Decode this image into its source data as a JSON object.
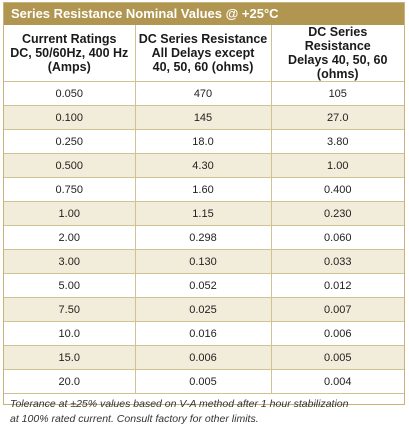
{
  "title": "Series Resistance Nominal Values @ +25°C",
  "colors": {
    "header_bg": "#b09650",
    "row_alt_bg": "#f2ecda",
    "rule": "#d2c291"
  },
  "headers": [
    [
      "Current Ratings",
      "DC, 50/60Hz, 400 Hz",
      "(Amps)"
    ],
    [
      "DC Series Resistance",
      "All Delays except",
      "40, 50, 60 (ohms)"
    ],
    [
      "DC Series Resistance",
      "Delays 40, 50, 60",
      "(ohms)"
    ]
  ],
  "rows": [
    [
      "0.050",
      "470",
      "105"
    ],
    [
      "0.100",
      "145",
      "27.0"
    ],
    [
      "0.250",
      "18.0",
      "3.80"
    ],
    [
      "0.500",
      "4.30",
      "1.00"
    ],
    [
      "0.750",
      "1.60",
      "0.400"
    ],
    [
      "1.00",
      "1.15",
      "0.230"
    ],
    [
      "2.00",
      "0.298",
      "0.060"
    ],
    [
      "3.00",
      "0.130",
      "0.033"
    ],
    [
      "5.00",
      "0.052",
      "0.012"
    ],
    [
      "7.50",
      "0.025",
      "0.007"
    ],
    [
      "10.0",
      "0.016",
      "0.006"
    ],
    [
      "15.0",
      "0.006",
      "0.005"
    ],
    [
      "20.0",
      "0.005",
      "0.004"
    ]
  ],
  "footnote": {
    "line1": "Tolerance at ±25% values based on V-A method after 1 hour stabilization",
    "line2": "at 100% rated current. Consult factory for other limits."
  }
}
